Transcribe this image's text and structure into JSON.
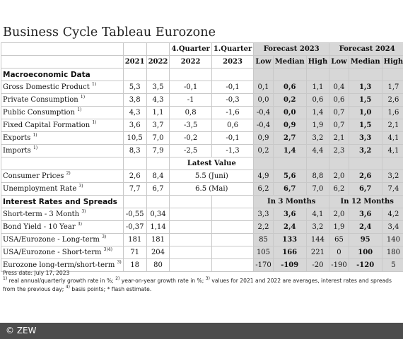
{
  "title": "Business Cycle Tableau Eurozone",
  "header": {
    "quarter_top": [
      "4.Quarter",
      "1.Quarter"
    ],
    "forecast_2023": "Forecast 2023",
    "forecast_2024": "Forecast 2024",
    "years": [
      "2021",
      "2022",
      "2022",
      "2023"
    ],
    "stats": [
      "Low",
      "Median",
      "High"
    ]
  },
  "macro": {
    "section": "Macroeconomic Data",
    "rows": [
      {
        "label": "Gross Domestic Product",
        "sup": "1)",
        "v": [
          "5,3",
          "3,5",
          "-0,1",
          "-0,1"
        ],
        "f23": [
          "0,1",
          "0,6",
          "1,1"
        ],
        "f24": [
          "0,4",
          "1,3",
          "1,7"
        ]
      },
      {
        "label": "Private Consumption",
        "sup": "1)",
        "v": [
          "3,8",
          "4,3",
          "-1",
          "-0,3"
        ],
        "f23": [
          "0,0",
          "0,2",
          "0,6"
        ],
        "f24": [
          "0,6",
          "1,5",
          "2,6"
        ]
      },
      {
        "label": "Public Consumption",
        "sup": "1)",
        "v": [
          "4,3",
          "1,1",
          "0,8",
          "-1,6"
        ],
        "f23": [
          "-0,4",
          "0,0",
          "1,4"
        ],
        "f24": [
          "0,7",
          "1,0",
          "1,6"
        ]
      },
      {
        "label": "Fixed Capital Formation",
        "sup": "1)",
        "v": [
          "3,6",
          "3,7",
          "-3,5",
          "0,6"
        ],
        "f23": [
          "-0,4",
          "0,9",
          "1,9"
        ],
        "f24": [
          "0,7",
          "1,5",
          "2,1"
        ]
      },
      {
        "label": "Exports",
        "sup": "1)",
        "v": [
          "10,5",
          "7,0",
          "-0,2",
          "-0,1"
        ],
        "f23": [
          "0,9",
          "2,7",
          "3,2"
        ],
        "f24": [
          "2,1",
          "3,3",
          "4,1"
        ]
      },
      {
        "label": "Imports",
        "sup": "1)",
        "v": [
          "8,3",
          "7,9",
          "-2,5",
          "-1,3"
        ],
        "f23": [
          "0,2",
          "1,4",
          "4,4"
        ],
        "f24": [
          "2,3",
          "3,2",
          "4,1"
        ]
      }
    ]
  },
  "latest": {
    "header": "Latest Value",
    "rows": [
      {
        "label": "Consumer Prices",
        "sup": "2)",
        "v": [
          "2,6",
          "8,4"
        ],
        "latest": "5.5 (Juni)",
        "f23": [
          "4,9",
          "5,6",
          "8,8"
        ],
        "f24": [
          "2,0",
          "2,6",
          "3,2"
        ]
      },
      {
        "label": "Unemployment Rate",
        "sup": "3)",
        "v": [
          "7,7",
          "6,7"
        ],
        "latest": "6.5 (Mai)",
        "f23": [
          "6,2",
          "6,7",
          "7,0"
        ],
        "f24": [
          "6,2",
          "6,7",
          "7,4"
        ]
      }
    ]
  },
  "rates": {
    "section": "Interest Rates and Spreads",
    "h3": "In 3 Months",
    "h12": "In 12 Months",
    "rows": [
      {
        "label": "Short-term - 3 Month",
        "sup": "3)",
        "v": [
          "-0,55",
          "0,34"
        ],
        "f23": [
          "3,3",
          "3,6",
          "4,1"
        ],
        "f24": [
          "2,0",
          "3,6",
          "4,2"
        ]
      },
      {
        "label": "Bond Yield - 10 Year",
        "sup": "3)",
        "v": [
          "-0,37",
          "1,14"
        ],
        "f23": [
          "2,2",
          "2,4",
          "3,2"
        ],
        "f24": [
          "1,9",
          "2,4",
          "3,4"
        ]
      },
      {
        "label": "USA/Eurozone - Long-term",
        "sup": "3)",
        "v": [
          "181",
          "181"
        ],
        "f23": [
          "85",
          "133",
          "144"
        ],
        "f24": [
          "65",
          "95",
          "140"
        ]
      },
      {
        "label": "USA/Eurozone - Short-term",
        "sup": "3)4)",
        "v": [
          "71",
          "204"
        ],
        "f23": [
          "105",
          "166",
          "221"
        ],
        "f24": [
          "0",
          "100",
          "180"
        ]
      },
      {
        "label": "Eurozone long-term/short-term",
        "sup": "3)",
        "v": [
          "18",
          "80"
        ],
        "f23": [
          "-170",
          "-109",
          "-20"
        ],
        "f24": [
          "-190",
          "-120",
          "5"
        ]
      }
    ]
  },
  "press_date": "Press date: July 17, 2023",
  "footnote_parts": [
    {
      "sup": "1)"
    },
    {
      "t": " real annual/quarterly growth rate in %; "
    },
    {
      "sup": "2)"
    },
    {
      "t": " year-on-year growth rate in %; "
    },
    {
      "sup": "3)"
    },
    {
      "t": " values for 2021 and 2022 are averages, interest rates and spreads from the previous day; "
    },
    {
      "sup": "4)"
    },
    {
      "t": " basis points; * flash estimate."
    }
  ],
  "copyright": "© ZEW",
  "colors": {
    "forecast_bg": "#d7d7d7",
    "grid": "#c8c8c8",
    "footer_bg": "#4d4d4d"
  }
}
